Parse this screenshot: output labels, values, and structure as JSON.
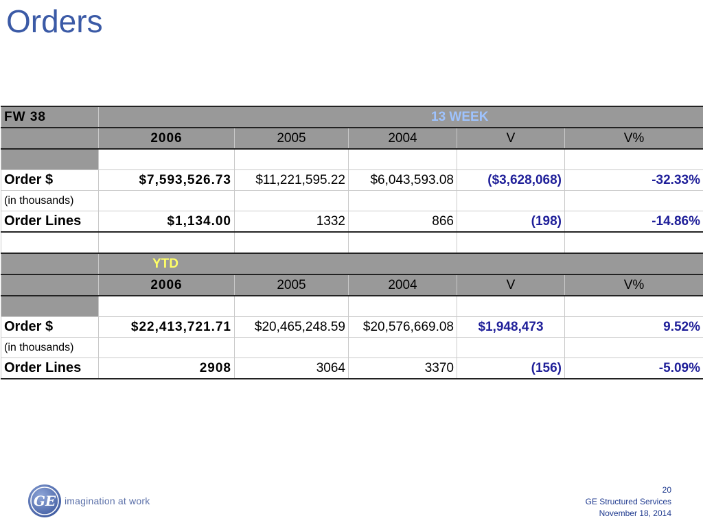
{
  "title": "Orders",
  "table": {
    "period_label": "FW 38",
    "week_section": {
      "label": "13 WEEK",
      "columns": [
        "2006",
        "2005",
        "2004",
        "V",
        "V%"
      ],
      "order_dollars": {
        "label": "Order $",
        "sublabel": "(in thousands)",
        "values": [
          "$7,593,526.73",
          "$11,221,595.22",
          "$6,043,593.08",
          "($3,628,068)",
          "-32.33%"
        ]
      },
      "order_lines": {
        "label": "Order Lines",
        "values": [
          "$1,134.00",
          "1332",
          "866",
          "(198)",
          "-14.86%"
        ]
      }
    },
    "ytd_section": {
      "label": "YTD",
      "columns": [
        "2006",
        "2005",
        "2004",
        "V",
        "V%"
      ],
      "order_dollars": {
        "label": "Order $",
        "sublabel": "(in thousands)",
        "values": [
          "$22,413,721.71",
          "$20,465,248.59",
          "$20,576,669.08",
          "$1,948,473",
          "9.52%"
        ]
      },
      "order_lines": {
        "label": "Order Lines",
        "values": [
          "2908",
          "3064",
          "3370",
          "(156)",
          "-5.09%"
        ]
      }
    }
  },
  "footer": {
    "logo_text": "GE",
    "tagline": "imagination at work",
    "page_number": "20",
    "company": "GE Structured Services",
    "date": "November 18, 2014"
  },
  "colors": {
    "title": "#3b5aa6",
    "header_gray": "#999999",
    "week_label": "#9ec3ff",
    "ytd_label": "#ffff66",
    "variance": "#1f1f99"
  }
}
